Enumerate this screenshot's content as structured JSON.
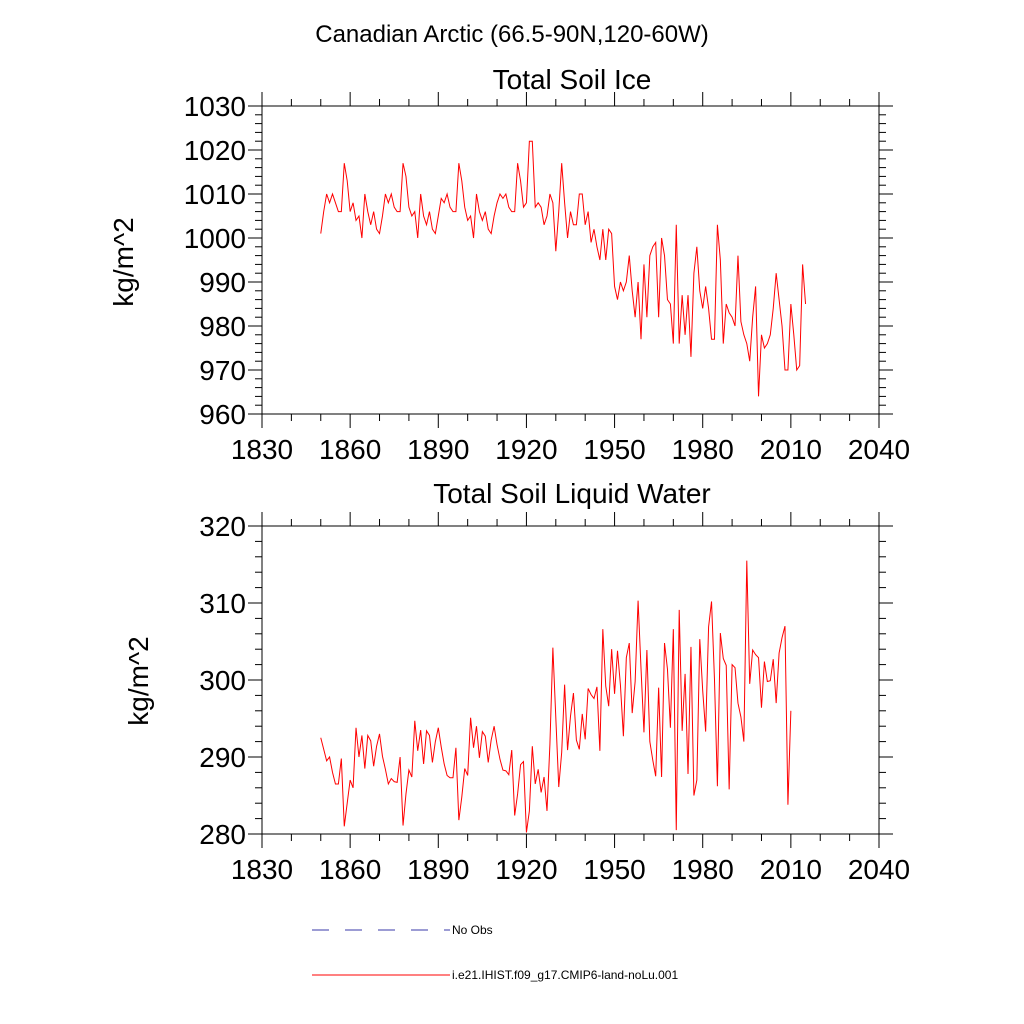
{
  "figure": {
    "title": "Canadian Arctic (66.5-90N,120-60W)",
    "legend": [
      {
        "label": "No Obs",
        "color": "#3a3aa8",
        "style": "dashed"
      },
      {
        "label": "i.e21.IHIST.f09_g17.CMIP6-land-noLu.001",
        "color": "#ff0000",
        "style": "solid"
      }
    ]
  },
  "chart_data": [
    {
      "type": "line",
      "title": "Total Soil Ice",
      "ylabel": "kg/m^2",
      "xlabel": "",
      "xlim": [
        1830,
        2040
      ],
      "ylim": [
        960,
        1030
      ],
      "xticks": [
        "1830",
        "1860",
        "1890",
        "1920",
        "1950",
        "1980",
        "2010",
        "2040"
      ],
      "yticks": [
        "960",
        "970",
        "980",
        "990",
        "1000",
        "1010",
        "1020",
        "1030"
      ],
      "series": [
        {
          "color": "#ff0000",
          "x_start": 1850,
          "values": [
            1001,
            1006,
            1010,
            1008,
            1010,
            1008,
            1006,
            1006,
            1017,
            1013,
            1006,
            1008,
            1004,
            1005,
            1000,
            1010,
            1006,
            1003,
            1006,
            1002,
            1001,
            1005,
            1010,
            1008,
            1010,
            1007,
            1006,
            1006,
            1017,
            1014,
            1007,
            1005,
            1006,
            1000,
            1010,
            1005,
            1003,
            1006,
            1002,
            1001,
            1005,
            1009,
            1008,
            1010,
            1007,
            1006,
            1006,
            1017,
            1013,
            1007,
            1004,
            1005,
            1000,
            1010,
            1006,
            1004,
            1006,
            1002,
            1001,
            1005,
            1008,
            1010,
            1009,
            1010,
            1007,
            1006,
            1006,
            1017,
            1013,
            1007,
            1008,
            1022,
            1022,
            1007,
            1008,
            1007,
            1003,
            1005,
            1010,
            1008,
            997,
            1006,
            1017,
            1008,
            1000,
            1006,
            1003,
            1003,
            1010,
            1010,
            1003,
            1006,
            999,
            1002,
            998,
            995,
            1002,
            995,
            1002,
            1001,
            989,
            986,
            990,
            988,
            990,
            996,
            988,
            982,
            990,
            977,
            994,
            982,
            996,
            998,
            999,
            982,
            1000,
            996,
            986,
            985,
            976,
            1003,
            976,
            987,
            978,
            987,
            973,
            992,
            998,
            988,
            984,
            989,
            984,
            977,
            977,
            1003,
            995,
            976,
            985,
            983,
            982,
            980,
            996,
            981,
            978,
            976,
            972,
            982,
            989,
            964,
            978,
            975,
            976,
            978,
            984,
            992,
            986,
            980,
            970,
            970,
            985,
            978,
            970,
            971,
            994,
            985
          ]
        }
      ]
    },
    {
      "type": "line",
      "title": "Total Soil Liquid Water",
      "ylabel": "kg/m^2",
      "xlabel": "",
      "xlim": [
        1830,
        2040
      ],
      "ylim": [
        280,
        320
      ],
      "xticks": [
        "1830",
        "1860",
        "1890",
        "1920",
        "1950",
        "1980",
        "2010",
        "2040"
      ],
      "yticks": [
        "280",
        "290",
        "300",
        "310",
        "320"
      ],
      "series": [
        {
          "color": "#ff0000",
          "x_start": 1850,
          "values": [
            292.5,
            291,
            289.5,
            290,
            288,
            286.5,
            286.5,
            289.8,
            281,
            284,
            287,
            286,
            293.8,
            290,
            292.8,
            288.5,
            292.8,
            292.1,
            288.8,
            291.4,
            293.0,
            290.1,
            288.4,
            286.5,
            287.2,
            286.8,
            286.7,
            290.0,
            281.1,
            285.2,
            288.3,
            287.4,
            294.7,
            290.8,
            293.5,
            289.1,
            293.4,
            292.8,
            289.3,
            292.0,
            293.8,
            291.3,
            289.1,
            287.6,
            287.3,
            287.3,
            291.2,
            281.8,
            284.8,
            288.5,
            287.6,
            295.1,
            291.2,
            294.0,
            289.9,
            293.3,
            292.7,
            289.3,
            292.2,
            294.0,
            291.6,
            289.7,
            288.3,
            288.2,
            287.7,
            290.9,
            282.4,
            285.2,
            289.0,
            289.4,
            280.2,
            283.0,
            291.4,
            286.5,
            288.4,
            285.4,
            287.4,
            283.0,
            291.7,
            304.2,
            295.1,
            286.1,
            290.6,
            299.4,
            290.9,
            295.3,
            298.3,
            292.2,
            291.0,
            295.6,
            292.3,
            298.9,
            298.1,
            297.6,
            299.1,
            290.8,
            306.6,
            299.2,
            296.6,
            304.0,
            298.2,
            303.8,
            299.3,
            292.7,
            302.9,
            304.8,
            295.7,
            299.8,
            310.3,
            301.5,
            293.2,
            303.9,
            292.0,
            289.6,
            287.5,
            299.0,
            287.4,
            304.8,
            301.4,
            293.8,
            306.6,
            280.5,
            309.1,
            293.4,
            300.8,
            287.8,
            304.3,
            285.0,
            287.0,
            305.3,
            298.6,
            293.3,
            306.9,
            310.2,
            300.1,
            286.2,
            306.1,
            302.8,
            301.9,
            285.8,
            302.0,
            301.6,
            297.0,
            295.2,
            292.0,
            315.5,
            299.5,
            303.9,
            303.3,
            302.9,
            296.4,
            302.4,
            299.8,
            299.9,
            302.7,
            297.0,
            303.5,
            305.5,
            307.0,
            283.8,
            296.0
          ]
        }
      ]
    }
  ]
}
